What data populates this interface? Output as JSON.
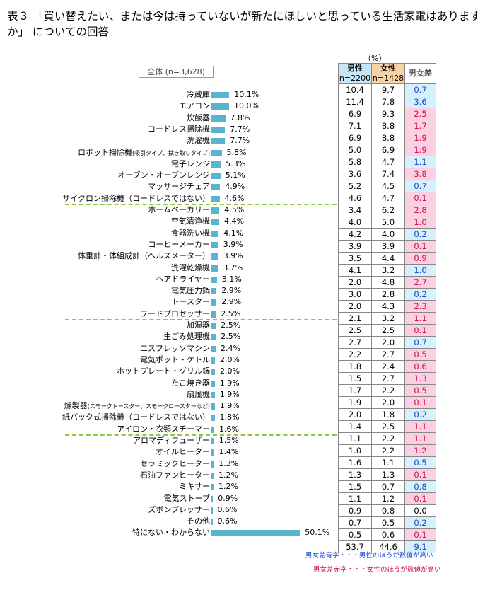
{
  "title": "表３ 「買い替えたい、または今は持っていないが新たにほしいと思っている生活家電はありますか」 についての回答",
  "unit": "（%）",
  "total_label": "全体 (n=3,628)",
  "table_headers": {
    "male_label": "男性",
    "male_n": "n=2200",
    "female_label": "女性",
    "female_n": "n=1428",
    "diff_label": "男女差"
  },
  "legend_notes": {
    "blue": "男女差青字・・・男性のほうが数値が高い",
    "red": "男女差赤字・・・女性のほうが数値が高い"
  },
  "colors": {
    "bar": "#5ab4cf",
    "male_header": "#c5e6f6",
    "female_header": "#f9d3a6",
    "blue_cell": "#d6f1fb",
    "red_cell": "#fbd0e3",
    "separator": "#8fc93a"
  },
  "chart_data": {
    "type": "bar",
    "orientation": "horizontal",
    "categories": [
      "冷蔵庫",
      "エアコン",
      "炊飯器",
      "コードレス掃除機",
      "洗濯機",
      "ロボット掃除機(吸引タイプ、拭き取りタイプ)",
      "電子レンジ",
      "オーブン・オーブンレンジ",
      "マッサージチェア",
      "サイクロン掃除機（コードレスではない）",
      "ホームベーカリー",
      "空気清浄機",
      "食器洗い機",
      "コーヒーメーカー",
      "体重計・体組成計（ヘルスメーター）",
      "洗濯乾燥機",
      "ヘアドライヤー",
      "電気圧力鍋",
      "トースター",
      "フードプロセッサー",
      "加湿器",
      "生ごみ処理機",
      "エスプレッソマシン",
      "電気ポット・ケトル",
      "ホットプレート・グリル鍋",
      "たこ焼き器",
      "扇風機",
      "燻製器(スモークトースター、スモークロースターなど)",
      "紙パック式掃除機（コードレスではない）",
      "アイロン・衣類スチーマー",
      "アロマディフューザー",
      "オイルヒーター",
      "セラミックヒーター",
      "石油ファンヒーター",
      "ミキサー",
      "電気ストーブ",
      "ズボンプレッサー",
      "その他",
      "特にない・わからない"
    ],
    "labels": [
      [
        "冷蔵庫",
        ""
      ],
      [
        "エアコン",
        ""
      ],
      [
        "炊飯器",
        ""
      ],
      [
        "コードレス掃除機",
        ""
      ],
      [
        "洗濯機",
        ""
      ],
      [
        "ロボット掃除機",
        "(吸引タイプ、拭き取りタイプ)"
      ],
      [
        "電子レンジ",
        ""
      ],
      [
        "オーブン・オーブンレンジ",
        ""
      ],
      [
        "マッサージチェア",
        ""
      ],
      [
        "サイクロン掃除機（コードレスではない）",
        ""
      ],
      [
        "ホームベーカリー",
        ""
      ],
      [
        "空気清浄機",
        ""
      ],
      [
        "食器洗い機",
        ""
      ],
      [
        "コーヒーメーカー",
        ""
      ],
      [
        "体重計・体組成計（ヘルスメーター）",
        ""
      ],
      [
        "洗濯乾燥機",
        ""
      ],
      [
        "ヘアドライヤー",
        ""
      ],
      [
        "電気圧力鍋",
        ""
      ],
      [
        "トースター",
        ""
      ],
      [
        "フードプロセッサー",
        ""
      ],
      [
        "加湿器",
        ""
      ],
      [
        "生ごみ処理機",
        ""
      ],
      [
        "エスプレッソマシン",
        ""
      ],
      [
        "電気ポット・ケトル",
        ""
      ],
      [
        "ホットプレート・グリル鍋",
        ""
      ],
      [
        "たこ焼き器",
        ""
      ],
      [
        "扇風機",
        ""
      ],
      [
        "燻製器",
        "(スモークトースター、スモークロースターなど)"
      ],
      [
        "紙パック式掃除機（コードレスではない）",
        ""
      ],
      [
        "アイロン・衣類スチーマー",
        ""
      ],
      [
        "アロマディフューザー",
        ""
      ],
      [
        "オイルヒーター",
        ""
      ],
      [
        "セラミックヒーター",
        ""
      ],
      [
        "石油ファンヒーター",
        ""
      ],
      [
        "ミキサー",
        ""
      ],
      [
        "電気ストーブ",
        ""
      ],
      [
        "ズボンプレッサー",
        ""
      ],
      [
        "その他",
        ""
      ],
      [
        "特にない・わからない",
        ""
      ]
    ],
    "values": [
      10.1,
      10.0,
      7.8,
      7.7,
      7.7,
      5.8,
      5.3,
      5.1,
      4.9,
      4.6,
      4.5,
      4.4,
      4.1,
      3.9,
      3.9,
      3.7,
      3.1,
      2.9,
      2.9,
      2.5,
      2.5,
      2.5,
      2.4,
      2.0,
      2.0,
      1.9,
      1.9,
      1.9,
      1.8,
      1.6,
      1.5,
      1.4,
      1.3,
      1.2,
      1.2,
      0.9,
      0.6,
      0.6,
      50.1
    ],
    "value_labels": [
      "10.1%",
      "10.0%",
      "7.8%",
      "7.7%",
      "7.7%",
      "5.8%",
      "5.3%",
      "5.1%",
      "4.9%",
      "4.6%",
      "4.5%",
      "4.4%",
      "4.1%",
      "3.9%",
      "3.9%",
      "3.7%",
      "3.1%",
      "2.9%",
      "2.9%",
      "2.5%",
      "2.5%",
      "2.5%",
      "2.4%",
      "2.0%",
      "2.0%",
      "1.9%",
      "1.9%",
      "1.9%",
      "1.8%",
      "1.6%",
      "1.5%",
      "1.4%",
      "1.3%",
      "1.2%",
      "1.2%",
      "0.9%",
      "0.6%",
      "0.6%",
      "50.1%"
    ],
    "male": [
      "10.4",
      "11.4",
      "6.9",
      "7.1",
      "6.9",
      "5.0",
      "5.8",
      "3.6",
      "5.2",
      "4.6",
      "3.4",
      "4.0",
      "4.2",
      "3.9",
      "3.5",
      "4.1",
      "2.0",
      "3.0",
      "2.0",
      "2.1",
      "2.5",
      "2.7",
      "2.2",
      "1.8",
      "1.5",
      "1.7",
      "1.9",
      "2.0",
      "1.4",
      "1.1",
      "1.0",
      "1.6",
      "1.3",
      "1.5",
      "1.1",
      "0.9",
      "0.7",
      "0.5",
      "53.7"
    ],
    "female": [
      "9.7",
      "7.8",
      "9.3",
      "8.8",
      "8.8",
      "6.9",
      "4.7",
      "7.4",
      "4.5",
      "4.7",
      "6.2",
      "5.0",
      "4.0",
      "3.9",
      "4.4",
      "3.2",
      "4.8",
      "2.8",
      "4.3",
      "3.2",
      "2.5",
      "2.0",
      "2.7",
      "2.4",
      "2.7",
      "2.2",
      "2.0",
      "1.8",
      "2.5",
      "2.2",
      "2.2",
      "1.1",
      "1.3",
      "0.7",
      "1.2",
      "0.8",
      "0.5",
      "0.6",
      "44.6"
    ],
    "diff": [
      "0.7",
      "3.6",
      "2.5",
      "1.7",
      "1.9",
      "1.9",
      "1.1",
      "3.8",
      "0.7",
      "0.1",
      "2.8",
      "1.0",
      "0.2",
      "0.1",
      "0.9",
      "1.0",
      "2.7",
      "0.2",
      "2.3",
      "1.1",
      "0.1",
      "0.7",
      "0.5",
      "0.6",
      "1.3",
      "0.5",
      "0.1",
      "0.2",
      "1.1",
      "1.1",
      "1.2",
      "0.5",
      "0.1",
      "0.8",
      "0.1",
      "0.0",
      "0.2",
      "0.1",
      "9.1"
    ],
    "diff_color": [
      "blue",
      "blue",
      "red",
      "red",
      "red",
      "red",
      "blue",
      "red",
      "blue",
      "red",
      "red",
      "red",
      "blue",
      "red",
      "red",
      "blue",
      "red",
      "blue",
      "red",
      "red",
      "red",
      "blue",
      "red",
      "red",
      "red",
      "red",
      "red",
      "blue",
      "red",
      "red",
      "red",
      "blue",
      "red",
      "blue",
      "red",
      "none",
      "blue",
      "red",
      "blue"
    ],
    "separators_after": [
      9,
      19,
      29
    ]
  }
}
